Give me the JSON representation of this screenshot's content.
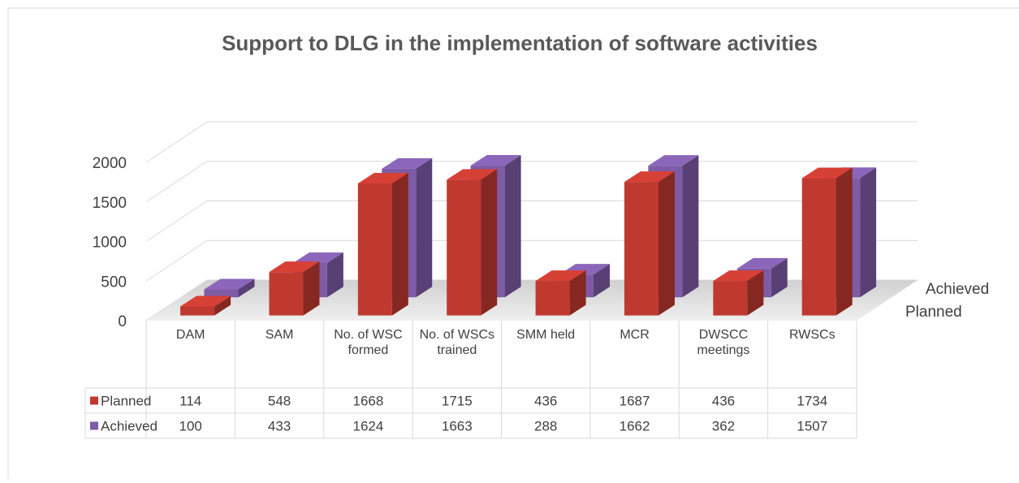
{
  "chart_data": {
    "type": "bar",
    "title": "Support to DLG in the implementation of software activities",
    "categories": [
      "DAM",
      "SAM",
      "No. of WSC formed",
      "No. of WSCs trained",
      "SMM held",
      "MCR",
      "DWSCC meetings",
      "RWSCs"
    ],
    "series": [
      {
        "name": "Planned",
        "color": "#c0392f",
        "values": [
          114,
          548,
          1668,
          1715,
          436,
          1687,
          436,
          1734
        ]
      },
      {
        "name": "Achieved",
        "color": "#7d5ba6",
        "values": [
          100,
          433,
          1624,
          1663,
          288,
          1662,
          362,
          1507
        ]
      }
    ],
    "ylim": [
      0,
      2000
    ],
    "yticks": [
      0,
      500,
      1000,
      1500,
      2000
    ],
    "grid": true,
    "data_table": true
  }
}
